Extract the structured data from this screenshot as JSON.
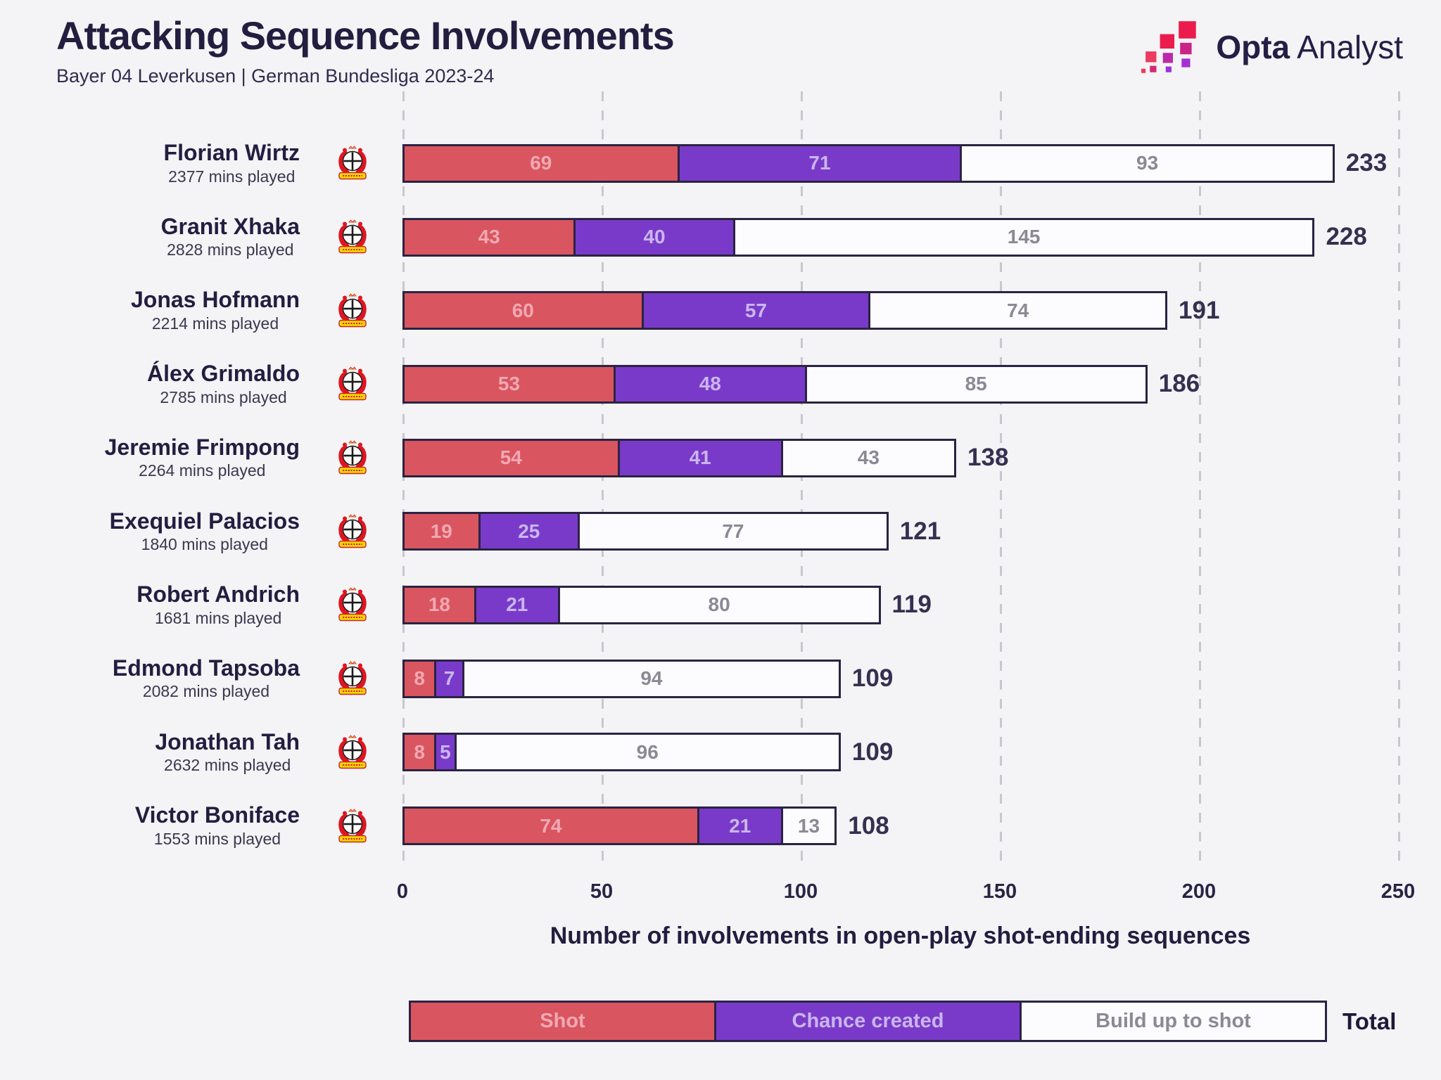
{
  "header": {
    "title": "Attacking Sequence Involvements",
    "subtitle": "Bayer 04 Leverkusen | German Bundesliga 2023-24",
    "brand_bold": "Opta",
    "brand_regular": "Analyst"
  },
  "chart_data": {
    "type": "bar",
    "orientation": "horizontal",
    "stacked": true,
    "title": "Attacking Sequence Involvements",
    "subtitle": "Bayer 04 Leverkusen | German Bundesliga 2023-24",
    "xlabel": "Number of involvements in open-play shot-ending sequences",
    "xlim": [
      0,
      250
    ],
    "x_ticks": [
      0,
      50,
      100,
      150,
      200,
      250
    ],
    "gridlines": "dashed-vertical",
    "legend_position": "bottom",
    "total_label": "Total",
    "team_crest_icon": "bayer-04-leverkusen-crest",
    "series": [
      {
        "name": "Shot",
        "color": "#d9555f",
        "label_color": "#f0a9b3",
        "values": [
          69,
          43,
          60,
          53,
          54,
          19,
          18,
          8,
          8,
          74
        ]
      },
      {
        "name": "Chance created",
        "color": "#7a3ac9",
        "label_color": "#c9b6ef",
        "values": [
          71,
          40,
          57,
          48,
          41,
          25,
          21,
          7,
          5,
          21
        ]
      },
      {
        "name": "Build up to shot",
        "color": "#fcfbfd",
        "label_color": "#8c8995",
        "values": [
          93,
          145,
          74,
          85,
          43,
          77,
          80,
          94,
          96,
          13
        ]
      }
    ],
    "players": [
      {
        "name": "Florian Wirtz",
        "mins": "2377 mins played",
        "shot": 69,
        "chance_created": 71,
        "build_up_to_shot": 93,
        "total": 233
      },
      {
        "name": "Granit Xhaka",
        "mins": "2828 mins played",
        "shot": 43,
        "chance_created": 40,
        "build_up_to_shot": 145,
        "total": 228
      },
      {
        "name": "Jonas Hofmann",
        "mins": "2214 mins played",
        "shot": 60,
        "chance_created": 57,
        "build_up_to_shot": 74,
        "total": 191
      },
      {
        "name": "Álex Grimaldo",
        "mins": "2785 mins played",
        "shot": 53,
        "chance_created": 48,
        "build_up_to_shot": 85,
        "total": 186
      },
      {
        "name": "Jeremie Frimpong",
        "mins": "2264 mins played",
        "shot": 54,
        "chance_created": 41,
        "build_up_to_shot": 43,
        "total": 138
      },
      {
        "name": "Exequiel Palacios",
        "mins": "1840 mins played",
        "shot": 19,
        "chance_created": 25,
        "build_up_to_shot": 77,
        "total": 121
      },
      {
        "name": "Robert Andrich",
        "mins": "1681 mins played",
        "shot": 18,
        "chance_created": 21,
        "build_up_to_shot": 80,
        "total": 119
      },
      {
        "name": "Edmond Tapsoba",
        "mins": "2082 mins played",
        "shot": 8,
        "chance_created": 7,
        "build_up_to_shot": 94,
        "total": 109
      },
      {
        "name": "Jonathan Tah",
        "mins": "2632 mins played",
        "shot": 8,
        "chance_created": 5,
        "build_up_to_shot": 96,
        "total": 109
      },
      {
        "name": "Victor Boniface",
        "mins": "1553 mins played",
        "shot": 74,
        "chance_created": 21,
        "build_up_to_shot": 13,
        "total": 108
      }
    ],
    "colors": {
      "background": "#f4f3f5",
      "ink": "#231d3f",
      "bar_border": "#2a2343",
      "gridline": "#c9c7ce",
      "total_text": "#353050"
    }
  }
}
